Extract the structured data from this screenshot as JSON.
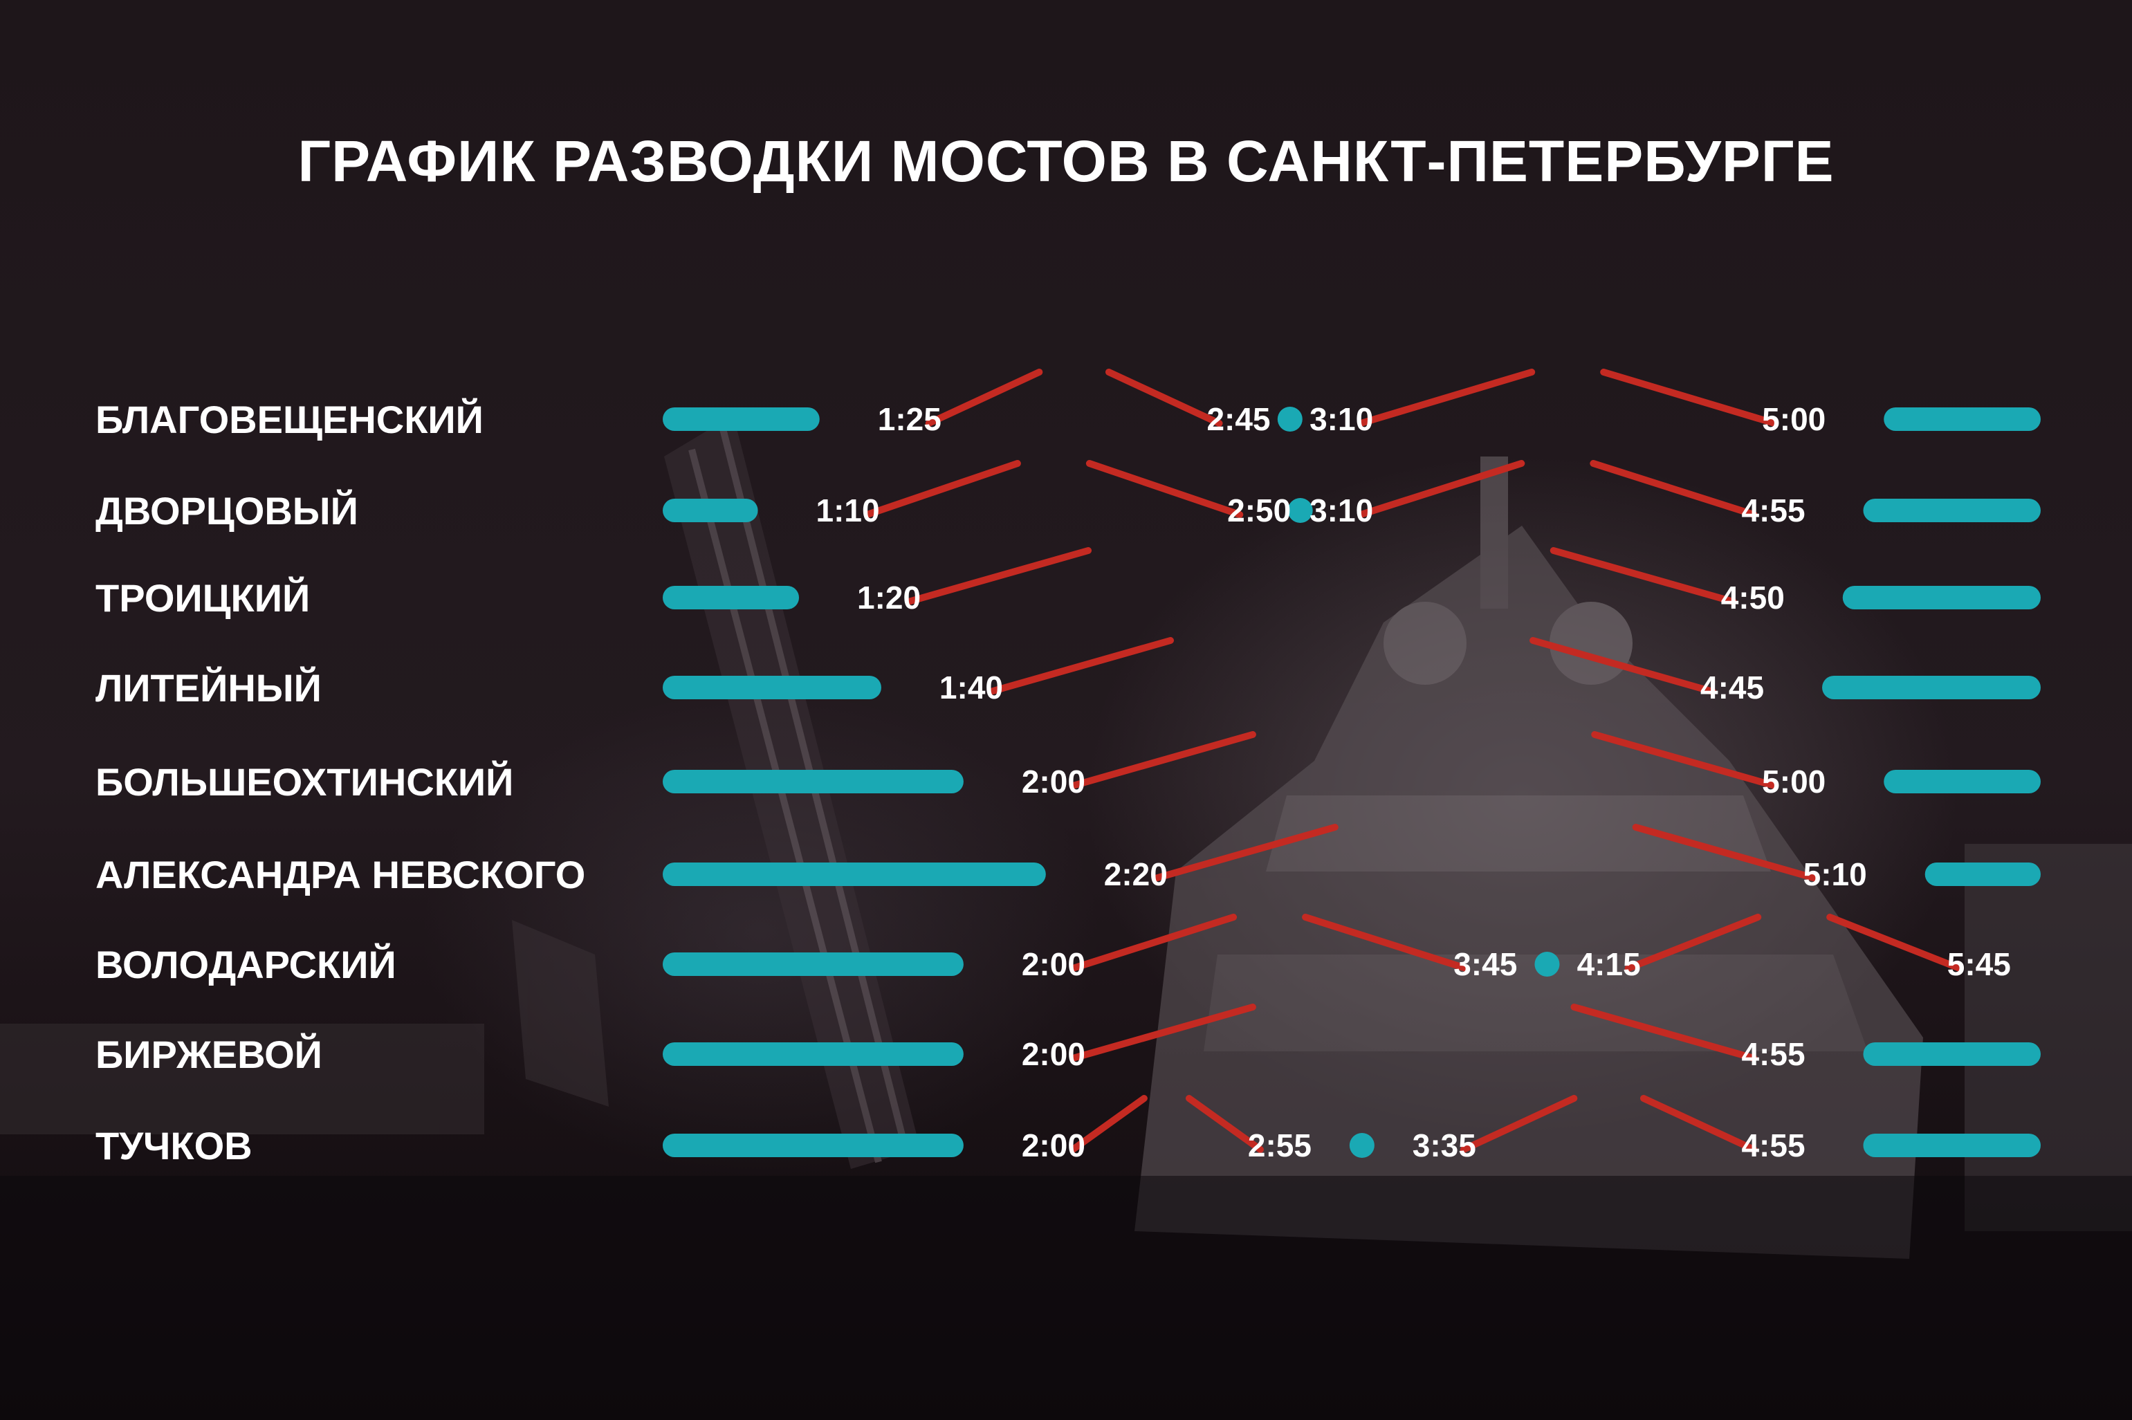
{
  "title": "ГРАФИК РАЗВОДКИ МОСТОВ В САНКТ-ПЕТЕРБУРГЕ",
  "colors": {
    "bar": "#1aa9b4",
    "raised_line": "#c42a22",
    "text": "#ffffff"
  },
  "chart_data": {
    "type": "gantt",
    "title": "ГРАФИК РАЗВОДКИ МОСТОВ В САНКТ-ПЕТЕРБУРГЕ",
    "x_range": [
      "0:25",
      "6:00"
    ],
    "bridges": [
      {
        "name": "БЛАГОВЕЩЕНСКИЙ",
        "raised": [
          [
            "1:25",
            "2:45"
          ],
          [
            "3:10",
            "5:00"
          ]
        ]
      },
      {
        "name": "ДВОРЦОВЫЙ",
        "raised": [
          [
            "1:10",
            "2:50"
          ],
          [
            "3:10",
            "4:55"
          ]
        ]
      },
      {
        "name": "ТРОИЦКИЙ",
        "raised": [
          [
            "1:20",
            "4:50"
          ]
        ]
      },
      {
        "name": "ЛИТЕЙНЫЙ",
        "raised": [
          [
            "1:40",
            "4:45"
          ]
        ]
      },
      {
        "name": "БОЛЬШЕОХТИНСКИЙ",
        "raised": [
          [
            "2:00",
            "5:00"
          ]
        ]
      },
      {
        "name": "АЛЕКСАНДРА НЕВСКОГО",
        "raised": [
          [
            "2:20",
            "5:10"
          ]
        ]
      },
      {
        "name": "ВОЛОДАРСКИЙ",
        "raised": [
          [
            "2:00",
            "3:45"
          ],
          [
            "4:15",
            "5:45"
          ]
        ]
      },
      {
        "name": "БИРЖЕВОЙ",
        "raised": [
          [
            "2:00",
            "4:55"
          ]
        ]
      },
      {
        "name": "ТУЧКОВ",
        "raised": [
          [
            "2:00",
            "2:55"
          ],
          [
            "3:35",
            "4:55"
          ]
        ]
      }
    ]
  }
}
